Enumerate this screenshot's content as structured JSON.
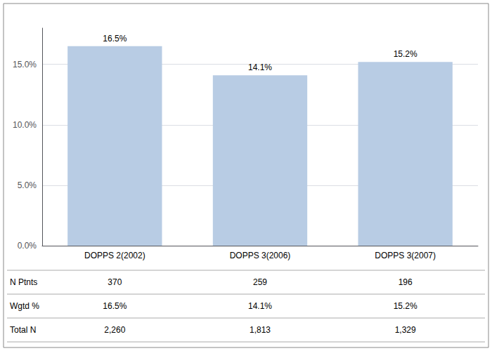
{
  "chart_data": {
    "type": "bar",
    "categories": [
      "DOPPS 2(2002)",
      "DOPPS 3(2006)",
      "DOPPS 3(2007)"
    ],
    "values": [
      16.5,
      14.1,
      15.2
    ],
    "value_labels": [
      "16.5%",
      "14.1%",
      "15.2%"
    ],
    "data_labels": true,
    "color": "#b8cce4",
    "ylim": [
      0,
      18
    ],
    "yticks": [
      {
        "value": 0,
        "label": "0.0%"
      },
      {
        "value": 5,
        "label": "5.0%"
      },
      {
        "value": 10,
        "label": "10.0%"
      },
      {
        "value": 15,
        "label": "15.0%"
      }
    ],
    "grid": true,
    "table": {
      "rows": [
        {
          "label": "N Ptnts",
          "cells": [
            "370",
            "259",
            "196"
          ]
        },
        {
          "label": "Wgtd %",
          "cells": [
            "16.5%",
            "14.1%",
            "15.2%"
          ]
        },
        {
          "label": "Total N",
          "cells": [
            "2,260",
            "1,813",
            "1,329"
          ]
        }
      ]
    }
  }
}
